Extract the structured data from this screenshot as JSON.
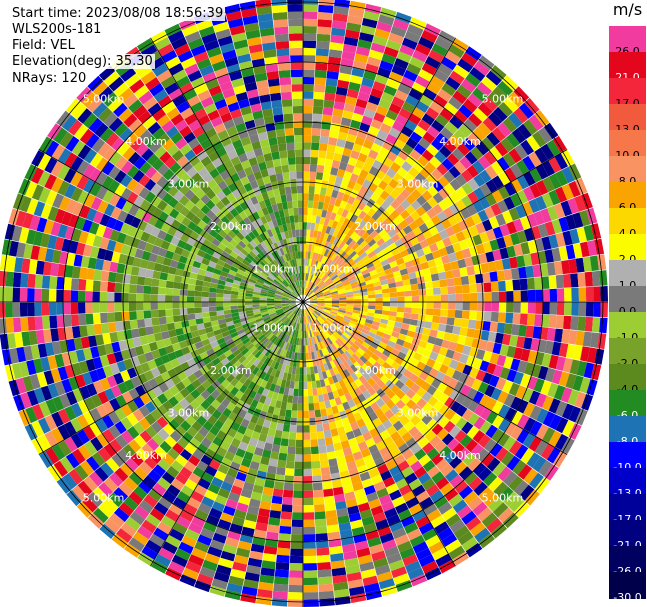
{
  "header": {
    "start_time": "Start time: 2023/08/08 18:56:39",
    "instrument": "WLS200s-181",
    "field": "Field: VEL",
    "elevation": "Elevation(deg): 35.30",
    "nrays": "NRays: 120"
  },
  "colorbar": {
    "unit": "m/s",
    "bins": [
      {
        "label": "26.0",
        "color": "#f23b9e",
        "text": "#000000"
      },
      {
        "label": "21.0",
        "color": "#e4061c",
        "text": "#ffffff"
      },
      {
        "label": "17.0",
        "color": "#f3263c",
        "text": "#000000"
      },
      {
        "label": "13.0",
        "color": "#f25a3e",
        "text": "#000000"
      },
      {
        "label": "10.0",
        "color": "#f6774a",
        "text": "#000000"
      },
      {
        "label": "8.0",
        "color": "#f99462",
        "text": "#000000"
      },
      {
        "label": "6.0",
        "color": "#f9a400",
        "text": "#000000"
      },
      {
        "label": "4.0",
        "color": "#fcd800",
        "text": "#000000"
      },
      {
        "label": "2.0",
        "color": "#fcfc00",
        "text": "#000000"
      },
      {
        "label": "1.0",
        "color": "#b0b0b0",
        "text": "#000000"
      },
      {
        "label": "0.0",
        "color": "#7a7a7a",
        "text": "#000000"
      },
      {
        "label": "-1.0",
        "color": "#9cce34",
        "text": "#000000"
      },
      {
        "label": "-2.0",
        "color": "#79a22a",
        "text": "#000000"
      },
      {
        "label": "-4.0",
        "color": "#5c8a1f",
        "text": "#000000"
      },
      {
        "label": "-6.0",
        "color": "#228b22",
        "text": "#ffffff"
      },
      {
        "label": "-8.0",
        "color": "#1e73b4",
        "text": "#ffffff"
      },
      {
        "label": "-10.0",
        "color": "#0000ff",
        "text": "#ffffff"
      },
      {
        "label": "-13.0",
        "color": "#0000c8",
        "text": "#ffffff"
      },
      {
        "label": "-17.0",
        "color": "#00009a",
        "text": "#ffffff"
      },
      {
        "label": "-21.0",
        "color": "#000080",
        "text": "#ffffff"
      },
      {
        "label": "-26.0",
        "color": "#000060",
        "text": "#ffffff"
      },
      {
        "label": "-30.0",
        "color": "#00004a",
        "text": "#ffffff"
      }
    ]
  },
  "range_rings": {
    "labels": [
      "1.00km",
      "2.00km",
      "3.00km",
      "4.00km",
      "5.00km"
    ]
  },
  "palette": {
    "positive": [
      "#fcfc00",
      "#fcd800",
      "#f9a400",
      "#f99462"
    ],
    "negative": [
      "#9cce34",
      "#79a22a",
      "#5c8a1f",
      "#228b22"
    ],
    "zero": [
      "#7a7a7a",
      "#b0b0b0"
    ],
    "noise": [
      "#f23b9e",
      "#e4061c",
      "#f3263c",
      "#0000ff",
      "#00009a",
      "#000080",
      "#fcfc00",
      "#9cce34",
      "#228b22",
      "#1e73b4",
      "#f9a400",
      "#7a7a7a",
      "#f99462",
      "#5c8a1f"
    ]
  }
}
